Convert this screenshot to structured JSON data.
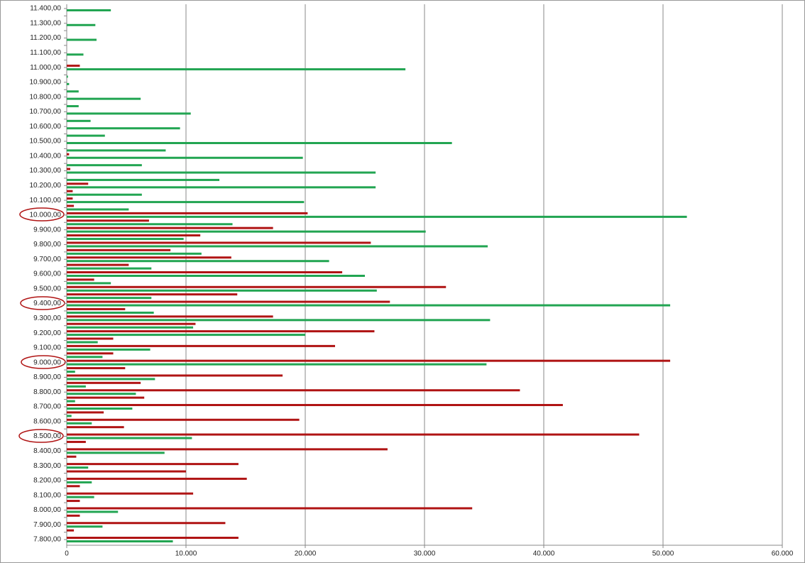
{
  "chart_data": {
    "type": "hbar",
    "categories": [
      "7.800,00",
      null,
      "7.900,00",
      null,
      "8.000,00",
      null,
      "8.100,00",
      null,
      "8.200,00",
      null,
      "8.300,00",
      null,
      "8.400,00",
      null,
      "8.500,00",
      null,
      "8.600,00",
      null,
      "8.700,00",
      null,
      "8.800,00",
      null,
      "8.900,00",
      null,
      "9.000,00",
      null,
      "9.100,00",
      null,
      "9.200,00",
      null,
      "9.300,00",
      null,
      "9.400,00",
      null,
      "9.500,00",
      null,
      "9.600,00",
      null,
      "9.700,00",
      null,
      "9.800,00",
      null,
      "9.900,00",
      null,
      "10.000,00",
      null,
      "10.100,00",
      null,
      "10.200,00",
      null,
      "10.300,00",
      null,
      "10.400,00",
      null,
      "10.500,00",
      null,
      "10.600,00",
      null,
      "10.700,00",
      null,
      "10.800,00",
      null,
      "10.900,00",
      null,
      "11.000,00",
      null,
      "11.100,00",
      null,
      "11.200,00",
      null,
      "11.300,00",
      null,
      "11.400,00"
    ],
    "series": [
      {
        "color": "#b01414",
        "values": [
          14400,
          600,
          13300,
          1100,
          34000,
          1100,
          10600,
          1100,
          15100,
          10000,
          14400,
          800,
          26900,
          1600,
          48000,
          4800,
          19500,
          3100,
          41600,
          6500,
          38000,
          6200,
          18100,
          4900,
          50600,
          3900,
          22500,
          3900,
          25800,
          10800,
          17300,
          4900,
          27100,
          14300,
          31800,
          2300,
          23100,
          5200,
          13800,
          8700,
          25500,
          11200,
          17300,
          6900,
          20200,
          600,
          500,
          500,
          1800,
          0,
          300,
          0,
          200,
          0,
          0,
          0,
          0,
          0,
          0,
          0,
          0,
          0,
          0,
          0,
          1100,
          0,
          0,
          0,
          0,
          0,
          0,
          0,
          0
        ]
      },
      {
        "color": "#22a552",
        "values": [
          8900,
          0,
          3000,
          0,
          4300,
          0,
          2300,
          0,
          2100,
          0,
          1800,
          0,
          8200,
          0,
          10500,
          0,
          2100,
          400,
          5500,
          700,
          5800,
          1600,
          7400,
          700,
          35200,
          3000,
          7000,
          2600,
          20000,
          10600,
          35500,
          7300,
          50600,
          7100,
          26000,
          3700,
          25000,
          7100,
          22000,
          11300,
          35300,
          9800,
          30100,
          13900,
          52000,
          5200,
          19900,
          6300,
          25900,
          12800,
          25900,
          6300,
          19800,
          8300,
          32300,
          3200,
          9500,
          2000,
          10400,
          1000,
          6200,
          1000,
          200,
          100,
          28400,
          0,
          1400,
          0,
          2500,
          0,
          2400,
          0,
          3700
        ]
      }
    ],
    "xlim": [
      0,
      60000
    ],
    "xticks": [
      0,
      {
        "value": 10000,
        "label": "10.000"
      },
      {
        "value": 20000,
        "label": "20.000"
      },
      {
        "value": 30000,
        "label": "30.000"
      },
      {
        "value": 40000,
        "label": "40.000"
      },
      {
        "value": 50000,
        "label": "50.000"
      },
      {
        "value": 60000,
        "label": "60.000"
      }
    ],
    "grid": true
  }
}
